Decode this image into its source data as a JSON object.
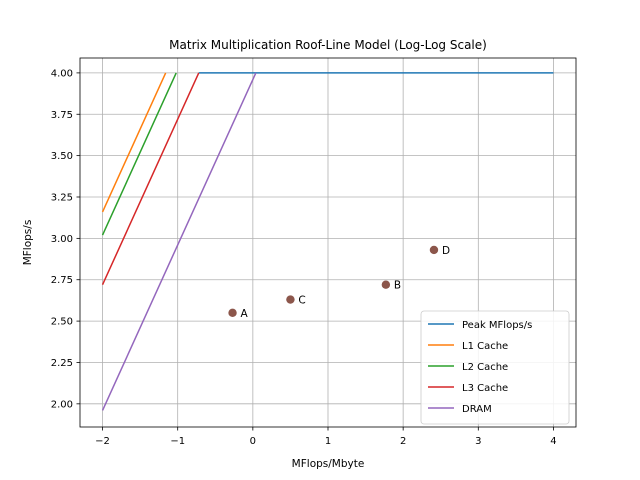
{
  "chart_data": {
    "type": "line",
    "title": "Matrix Multiplication Roof-Line Model (Log-Log Scale)",
    "xlabel": "MFlops/Mbyte",
    "ylabel": "MFlops/s",
    "xlim": [
      -2.3,
      4.3
    ],
    "ylim": [
      1.86,
      4.09
    ],
    "x_ticks": [
      -2,
      -1,
      0,
      1,
      2,
      3,
      4
    ],
    "y_ticks": [
      2.0,
      2.25,
      2.5,
      2.75,
      3.0,
      3.25,
      3.5,
      3.75,
      4.0
    ],
    "x_tick_labels": [
      "−2",
      "−1",
      "0",
      "1",
      "2",
      "3",
      "4"
    ],
    "y_tick_labels": [
      "2.00",
      "2.25",
      "2.50",
      "2.75",
      "3.00",
      "3.25",
      "3.50",
      "3.75",
      "4.00"
    ],
    "grid": true,
    "legend_position": "bottom-right",
    "series": [
      {
        "name": "Peak MFlops/s",
        "color": "#1f77b4",
        "x": [
          -0.72,
          4.0
        ],
        "y": [
          4.0,
          4.0
        ]
      },
      {
        "name": "L1 Cache",
        "color": "#ff7f0e",
        "x": [
          -2.0,
          -1.16
        ],
        "y": [
          3.16,
          4.0
        ]
      },
      {
        "name": "L2 Cache",
        "color": "#2ca02c",
        "x": [
          -2.0,
          -1.02
        ],
        "y": [
          3.02,
          4.0
        ]
      },
      {
        "name": "L3 Cache",
        "color": "#d62728",
        "x": [
          -2.0,
          -0.72
        ],
        "y": [
          2.72,
          4.0
        ]
      },
      {
        "name": "DRAM",
        "color": "#9467bd",
        "x": [
          -2.0,
          0.04
        ],
        "y": [
          1.96,
          4.0
        ]
      }
    ],
    "points": [
      {
        "label": "A",
        "x": -0.27,
        "y": 2.55
      },
      {
        "label": "C",
        "x": 0.5,
        "y": 2.63
      },
      {
        "label": "B",
        "x": 1.77,
        "y": 2.72
      },
      {
        "label": "D",
        "x": 2.41,
        "y": 2.93
      }
    ],
    "point_color": "#8c564b"
  }
}
